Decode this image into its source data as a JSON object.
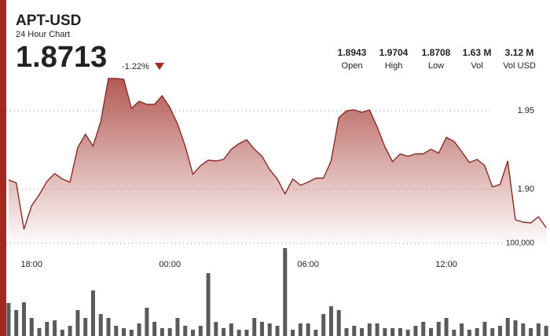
{
  "header": {
    "symbol": "APT-USD",
    "subtitle": "24 Hour Chart",
    "price": "1.8713",
    "change": "-1.22%"
  },
  "stats": [
    {
      "value": "1.8943",
      "label": "Open"
    },
    {
      "value": "1.9704",
      "label": "High"
    },
    {
      "value": "1.8708",
      "label": "Low"
    },
    {
      "value": "1.63 M",
      "label": "Vol"
    },
    {
      "value": "3.12 M",
      "label": "Vol USD"
    }
  ],
  "chart_data": {
    "type": "area",
    "color": "#8c2a24",
    "xlim": [
      "16:54",
      "16:30"
    ],
    "xticks": [
      "18:00",
      "00:00",
      "06:00",
      "12:00"
    ],
    "ylim": [
      1.8655,
      1.973
    ],
    "yticks": [
      {
        "value": 1.9,
        "label": "1.90"
      },
      1.95
    ],
    "grid": true,
    "x": [
      "17:00",
      "17:20",
      "17:40",
      "18:00",
      "18:20",
      "18:40",
      "19:00",
      "19:20",
      "19:40",
      "20:00",
      "20:20",
      "20:40",
      "21:00",
      "21:20",
      "21:40",
      "22:00",
      "22:20",
      "22:40",
      "23:00",
      "23:20",
      "23:40",
      "00:00",
      "00:20",
      "00:40",
      "01:00",
      "01:20",
      "01:40",
      "02:00",
      "02:20",
      "02:40",
      "03:00",
      "03:20",
      "03:40",
      "04:00",
      "04:20",
      "04:40",
      "05:00",
      "05:20",
      "05:40",
      "06:00",
      "06:20",
      "06:40",
      "07:00",
      "07:20",
      "07:40",
      "08:00",
      "08:20",
      "08:40",
      "09:00",
      "09:20",
      "09:40",
      "10:00",
      "10:20",
      "10:40",
      "11:00",
      "11:20",
      "11:40",
      "12:00",
      "12:20",
      "12:40",
      "13:00",
      "13:20",
      "13:40",
      "14:00",
      "14:20",
      "14:40",
      "15:00",
      "15:20",
      "15:40",
      "16:00",
      "16:20"
    ],
    "values": [
      1.906,
      1.904,
      1.8745,
      1.8895,
      1.8965,
      1.905,
      1.91,
      1.9065,
      1.9045,
      1.9265,
      1.935,
      1.9275,
      1.943,
      1.9705,
      1.9705,
      1.97,
      1.9515,
      1.956,
      1.954,
      1.954,
      1.9595,
      1.952,
      1.9415,
      1.9275,
      1.9095,
      1.915,
      1.9185,
      1.918,
      1.919,
      1.9255,
      1.929,
      1.9315,
      1.9255,
      1.921,
      1.9125,
      1.9065,
      1.897,
      1.9065,
      1.9025,
      1.9045,
      1.907,
      1.907,
      1.918,
      1.9455,
      1.95,
      1.9505,
      1.949,
      1.9505,
      1.9395,
      1.927,
      1.9175,
      1.9225,
      1.921,
      1.9225,
      1.9225,
      1.9255,
      1.923,
      1.933,
      1.9305,
      1.924,
      1.917,
      1.919,
      1.915,
      1.9015,
      1.903,
      1.918,
      1.8805,
      1.879,
      1.8785,
      1.8825,
      1.8755
    ],
    "volume": {
      "color": "#5a5a5a",
      "ylim": [
        0,
        100000
      ],
      "yticks": [
        {
          "value": 100000,
          "label": "100,000"
        }
      ],
      "values": [
        35600,
        28000,
        36400,
        19500,
        8500,
        15300,
        16900,
        6800,
        11000,
        28000,
        19500,
        49200,
        23700,
        19500,
        11000,
        8500,
        6800,
        13600,
        30500,
        15300,
        8500,
        8500,
        19500,
        11000,
        6800,
        11000,
        67800,
        15300,
        8500,
        13600,
        6800,
        6800,
        19500,
        15300,
        13600,
        11000,
        94900,
        6800,
        13600,
        13600,
        6800,
        23700,
        32200,
        28000,
        8500,
        11000,
        8500,
        13600,
        13600,
        8500,
        8500,
        8500,
        6800,
        11000,
        15300,
        8500,
        15300,
        19500,
        6800,
        13600,
        6800,
        8500,
        15300,
        8500,
        11000,
        19500,
        16900,
        13600,
        8500,
        13600,
        11000
      ]
    }
  }
}
